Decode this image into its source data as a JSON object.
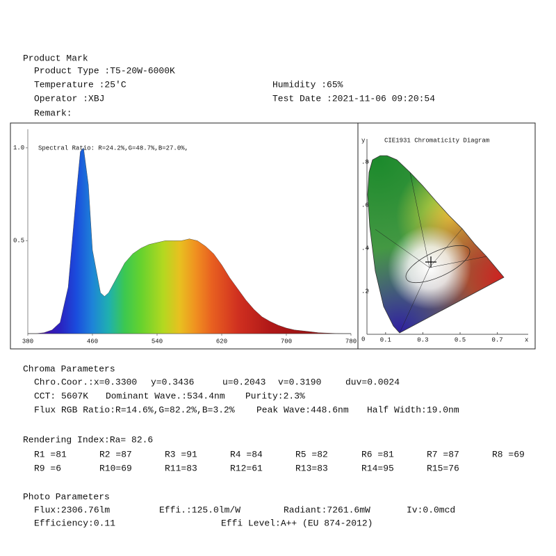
{
  "header": {
    "title": "Product Mark",
    "product_type": "Product Type :T5-20W-6000K",
    "temperature": "Temperature :25'C",
    "humidity": "Humidity :65%",
    "operator": "Operator :XBJ",
    "test_date": "Test Date :2021-11-06 09:20:54",
    "remark": "Remark:"
  },
  "spectrum": {
    "type": "area",
    "annotation": "Spectral Ratio:  R=24.2%,G=48.7%,B=27.0%,",
    "x": [
      380,
      390,
      400,
      410,
      420,
      430,
      440,
      445,
      449,
      455,
      460,
      470,
      475,
      480,
      490,
      500,
      510,
      520,
      530,
      540,
      550,
      560,
      570,
      580,
      590,
      600,
      610,
      620,
      630,
      640,
      650,
      660,
      670,
      680,
      690,
      700,
      710,
      720,
      730,
      740,
      750,
      760,
      770,
      780
    ],
    "values": [
      0,
      0,
      0.005,
      0.02,
      0.06,
      0.25,
      0.75,
      0.98,
      1.0,
      0.8,
      0.45,
      0.22,
      0.2,
      0.22,
      0.3,
      0.38,
      0.43,
      0.46,
      0.48,
      0.49,
      0.5,
      0.5,
      0.5,
      0.51,
      0.5,
      0.47,
      0.43,
      0.37,
      0.3,
      0.24,
      0.18,
      0.13,
      0.09,
      0.065,
      0.045,
      0.03,
      0.02,
      0.015,
      0.01,
      0.005,
      0.003,
      0.001,
      0,
      0
    ],
    "xlim": [
      380,
      780
    ],
    "ylim": [
      0,
      1.1
    ],
    "xticks": [
      380,
      460,
      540,
      620,
      700,
      780
    ],
    "yticks": [
      {
        "value": 1,
        "label": "1.0"
      },
      0.5
    ]
  },
  "cie": {
    "title": "CIE1931 Chromaticity Diagram",
    "y_label": "y",
    "x_label": "x",
    "xlim": [
      0,
      0.8
    ],
    "ylim": [
      0,
      0.9
    ],
    "xticks": [
      0.1,
      0.3,
      0.5,
      0.7
    ],
    "yticks": [
      {
        "value": 0.8,
        "label": ".8"
      },
      {
        "value": 0.6,
        "label": ".6"
      },
      {
        "value": 0.4,
        "label": ".4"
      },
      {
        "value": 0.2,
        "label": ".2"
      },
      0
    ]
  },
  "chroma": {
    "title": "Chroma Parameters",
    "rows": [
      [
        "Chro.Coor.:x=0.3300",
        "y=0.3436",
        "u=0.2043",
        "v=0.3190",
        "duv=0.0024"
      ],
      [
        "CCT: 5607K",
        "Dominant Wave.:534.4nm",
        "Purity:2.3%"
      ],
      [
        "Flux RGB Ratio:R=14.6%,G=82.2%,B=3.2%",
        "Peak Wave:448.6nm",
        "Half Width:19.0nm"
      ]
    ]
  },
  "rendering": {
    "title": "Rendering Index:Ra= 82.6",
    "rows": [
      [
        "R1 =81",
        "R2 =87",
        "R3 =91",
        "R4 =84",
        "R5 =82",
        "R6 =81",
        "R7 =87",
        "R8 =69"
      ],
      [
        "R9 =6",
        "R10=69",
        "R11=83",
        "R12=61",
        "R13=83",
        "R14=95",
        "R15=76"
      ]
    ]
  },
  "photo": {
    "title": "Photo Parameters",
    "rows": [
      [
        "Flux:2306.76lm",
        "Effi.:125.0lm/W",
        "Radiant:7261.6mW",
        "Iv:0.0mcd"
      ],
      [
        "Efficiency:0.11",
        "Effi Level:A++ (EU 874-2012)"
      ]
    ]
  }
}
